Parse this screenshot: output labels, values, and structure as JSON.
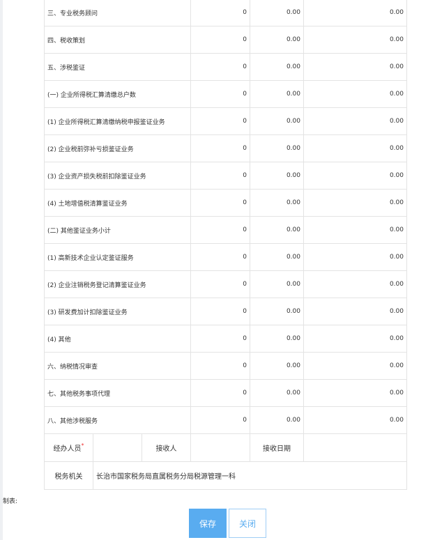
{
  "rows": [
    {
      "label": "三、专业税务顾问",
      "count": "0",
      "amount": "0.00",
      "total": "0.00"
    },
    {
      "label": "四、税收策划",
      "count": "0",
      "amount": "0.00",
      "total": "0.00"
    },
    {
      "label": "五、涉税鉴证",
      "count": "0",
      "amount": "0.00",
      "total": "0.00"
    },
    {
      "label": "(一) 企业所得税汇算清缴总户数",
      "count": "0",
      "amount": "0.00",
      "total": "0.00"
    },
    {
      "label": "(1) 企业所得税汇算清缴纳税申报鉴证业务",
      "count": "0",
      "amount": "0.00",
      "total": "0.00"
    },
    {
      "label": "(2) 企业税前弥补亏损鉴证业务",
      "count": "0",
      "amount": "0.00",
      "total": "0.00"
    },
    {
      "label": "(3) 企业资产损失税前扣除鉴证业务",
      "count": "0",
      "amount": "0.00",
      "total": "0.00"
    },
    {
      "label": "(4) 土地增值税清算鉴证业务",
      "count": "0",
      "amount": "0.00",
      "total": "0.00"
    },
    {
      "label": "(二) 其他鉴证业务小计",
      "count": "0",
      "amount": "0.00",
      "total": "0.00"
    },
    {
      "label": "(1) 高新技术企业认定鉴证服务",
      "count": "0",
      "amount": "0.00",
      "total": "0.00"
    },
    {
      "label": "(2) 企业注销税务登记清算鉴证业务",
      "count": "0",
      "amount": "0.00",
      "total": "0.00"
    },
    {
      "label": "(3) 研发费加计扣除鉴证业务",
      "count": "0",
      "amount": "0.00",
      "total": "0.00"
    },
    {
      "label": "(4) 其他",
      "count": "0",
      "amount": "0.00",
      "total": "0.00"
    },
    {
      "label": "六、纳税情况审查",
      "count": "0",
      "amount": "0.00",
      "total": "0.00"
    },
    {
      "label": "七、其他税务事项代理",
      "count": "0",
      "amount": "0.00",
      "total": "0.00"
    },
    {
      "label": "八、其他涉税服务",
      "count": "0",
      "amount": "0.00",
      "total": "0.00"
    }
  ],
  "footer": {
    "handler_label": "经办人员",
    "required_mark": "*",
    "receiver_label": "接收人",
    "receive_date_label": "接收日期",
    "tax_office_label": "税务机关",
    "tax_office_value": "长治市国家税务局直属税务分局税源管理一科"
  },
  "maker_label": "制表:",
  "buttons": {
    "save": "保存",
    "close": "关闭"
  },
  "colors": {
    "primary": "#59acf0"
  }
}
